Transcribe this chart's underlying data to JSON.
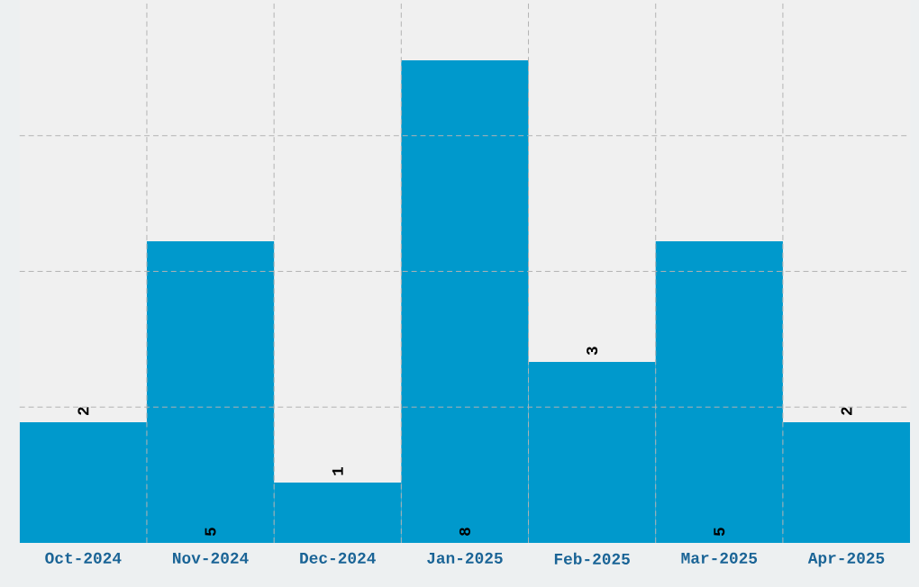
{
  "chart_data": {
    "type": "bar",
    "categories": [
      "Oct-2024",
      "Nov-2024",
      "Dec-2024",
      "Jan-2025",
      "Feb-2025",
      "Mar-2025",
      "Apr-2025"
    ],
    "values": [
      2,
      5,
      1,
      8,
      3,
      5,
      2
    ],
    "color": "#0099cc",
    "data_labels": true,
    "grid": true,
    "tick_labels": "x",
    "ylim": [
      0,
      9
    ],
    "yticks": [
      {
        "value": 2.25,
        "label": null
      },
      {
        "value": 4.5,
        "label": null
      },
      {
        "value": 6.75,
        "label": null
      }
    ]
  }
}
